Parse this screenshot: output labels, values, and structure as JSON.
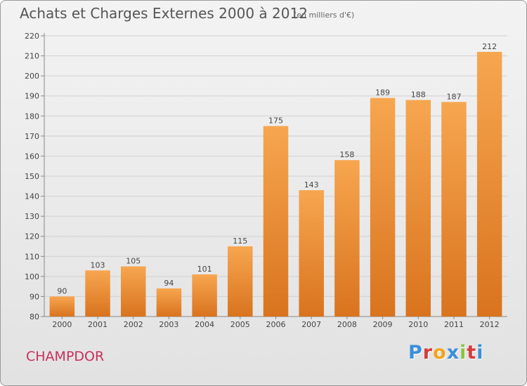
{
  "header": {
    "title": "Achats et Charges Externes 2000 à 2012",
    "subtitle": "(en milliers d'€)"
  },
  "footer": {
    "commune": "CHAMPDOR",
    "brand": "Proxiti"
  },
  "colors": {
    "bar_light": "#f7a650",
    "bar_dark": "#d9731e",
    "commune_text": "#c7305b",
    "brand_letters": [
      "#3b8fd9",
      "#d93b3b",
      "#f2a41c",
      "#3b8fd9",
      "#8bc43f",
      "#d93b3b",
      "#3b8fd9"
    ]
  },
  "chart_data": {
    "type": "bar",
    "title": "Achats et Charges Externes 2000 à 2012",
    "subtitle": "(en milliers d'€)",
    "xlabel": "",
    "ylabel": "",
    "categories": [
      "2000",
      "2001",
      "2002",
      "2003",
      "2004",
      "2005",
      "2006",
      "2007",
      "2008",
      "2009",
      "2010",
      "2011",
      "2012"
    ],
    "values": [
      90,
      103,
      105,
      94,
      101,
      115,
      175,
      143,
      158,
      189,
      188,
      187,
      212
    ],
    "ylim": [
      80,
      220
    ],
    "yticks": [
      80,
      90,
      100,
      110,
      120,
      130,
      140,
      150,
      160,
      170,
      180,
      190,
      200,
      210,
      220
    ],
    "grid": true,
    "data_labels": true
  }
}
